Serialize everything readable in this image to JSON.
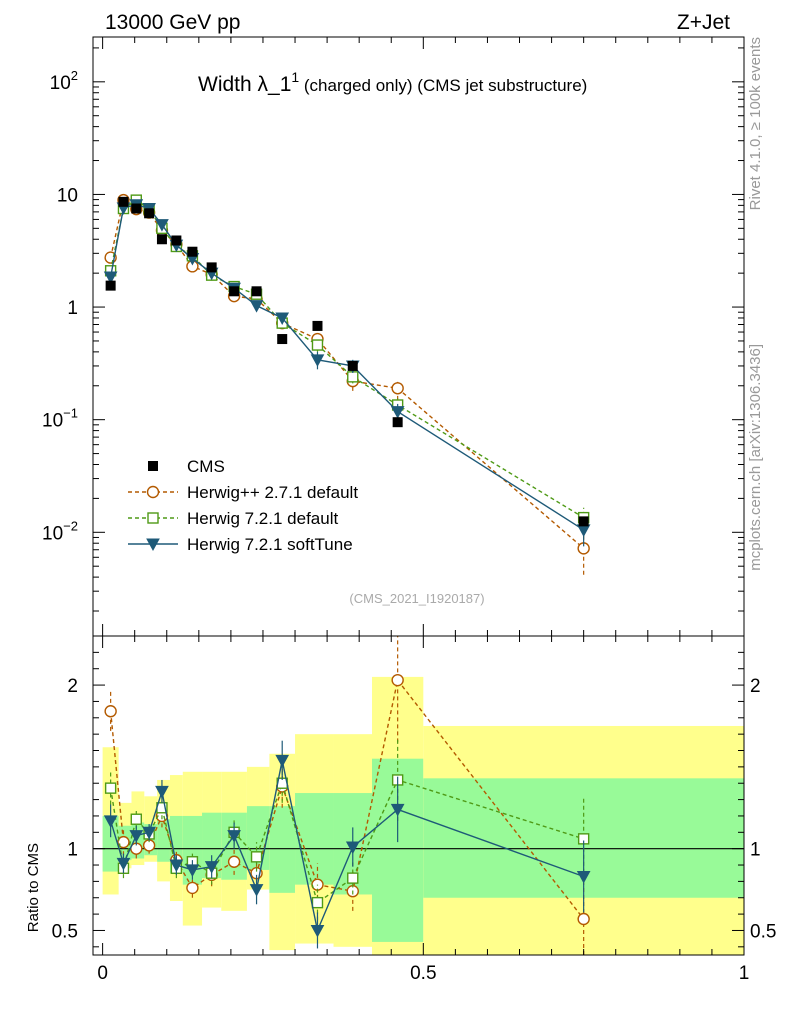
{
  "header": {
    "energy_label": "13000 GeV pp",
    "process_label": "Z+Jet",
    "side_label_top": "Rivet 4.1.0, ≥ 100k events",
    "side_label_bottom": "mcplots.cern.ch [arXiv:1306.3436]"
  },
  "chart_data": [
    {
      "type": "line",
      "panel": "main",
      "title": "Width λ_1",
      "title_superscript": "1",
      "title_suffix": " (charged only) (CMS jet substructure)",
      "analysis_tag": "(CMS_2021_I1920187)",
      "yscale": "log",
      "xlim": [
        -0.015,
        1.0
      ],
      "ylim": [
        0.0012,
        250
      ],
      "ytick_values": [
        0.01,
        0.1,
        1,
        10,
        100
      ],
      "ytick_labels": [
        {
          "base": "10",
          "exp": "−2"
        },
        {
          "base": "10",
          "exp": "−1"
        },
        {
          "base": "1",
          "exp": ""
        },
        {
          "base": "10",
          "exp": ""
        },
        {
          "base": "10",
          "exp": "2"
        }
      ],
      "data_points": {
        "name": "CMS",
        "x": [
          0.0125,
          0.0325,
          0.0525,
          0.0725,
          0.0925,
          0.115,
          0.14,
          0.17,
          0.205,
          0.24,
          0.28,
          0.335,
          0.39,
          0.46,
          0.75
        ],
        "y": [
          1.55,
          8.6,
          7.5,
          6.8,
          4.0,
          3.9,
          3.1,
          2.25,
          1.38,
          1.38,
          0.52,
          0.68,
          0.3,
          0.095,
          0.0125
        ]
      },
      "series": [
        {
          "name": "Herwig++ 2.7.1 default",
          "color": "#b35a00",
          "marker": "circle",
          "dash": "4,3",
          "y": [
            2.75,
            8.9,
            7.4,
            6.9,
            4.8,
            3.6,
            2.3,
            1.95,
            1.25,
            1.18,
            0.72,
            0.52,
            0.22,
            0.19,
            0.0072
          ],
          "err": [
            0.3,
            0.5,
            0.4,
            0.3,
            0.3,
            0.2,
            0.15,
            0.15,
            0.1,
            0.1,
            0.07,
            0.07,
            0.04,
            0.04,
            0.003
          ]
        },
        {
          "name": "Herwig 7.2.1 default",
          "color": "#4f9a16",
          "marker": "square",
          "dash": "4,3",
          "y": [
            2.1,
            7.5,
            8.9,
            7.4,
            5.0,
            3.45,
            2.85,
            1.92,
            1.52,
            1.3,
            0.72,
            0.46,
            0.24,
            0.135,
            0.0135
          ],
          "err": [
            0.2,
            0.4,
            0.4,
            0.3,
            0.3,
            0.2,
            0.15,
            0.15,
            0.1,
            0.1,
            0.06,
            0.06,
            0.03,
            0.02,
            0.003
          ]
        },
        {
          "name": "Herwig 7.2.1 softTune",
          "color": "#1e5a78",
          "marker": "triangle-down",
          "dash": "",
          "y": [
            1.85,
            7.6,
            8.1,
            7.5,
            5.4,
            3.55,
            2.7,
            2.0,
            1.47,
            1.03,
            0.8,
            0.34,
            0.3,
            0.118,
            0.0105
          ],
          "err": [
            0.2,
            0.4,
            0.4,
            0.3,
            0.3,
            0.2,
            0.15,
            0.15,
            0.1,
            0.1,
            0.06,
            0.06,
            0.04,
            0.02,
            0.003
          ]
        }
      ],
      "legend": {
        "position": "lower-left",
        "entries": [
          "CMS",
          "Herwig++ 2.7.1 default",
          "Herwig 7.2.1 default",
          "Herwig 7.2.1 softTune"
        ]
      }
    },
    {
      "type": "line",
      "panel": "ratio",
      "ylabel": "Ratio to CMS",
      "xlim": [
        -0.015,
        1.0
      ],
      "ylim": [
        0.35,
        2.3
      ],
      "ytick_values": [
        0.5,
        1,
        2
      ],
      "ytick_labels": [
        "0.5",
        "1",
        "2"
      ],
      "xtick_values": [
        0,
        0.5,
        1
      ],
      "xtick_labels": [
        "0",
        "0.5",
        "1"
      ],
      "reference_line": 1,
      "bands": {
        "bin_edges": [
          0,
          0.025,
          0.045,
          0.065,
          0.085,
          0.105,
          0.125,
          0.155,
          0.185,
          0.225,
          0.26,
          0.3,
          0.36,
          0.42,
          0.5,
          1.0
        ],
        "outer_low": [
          0.72,
          0.88,
          0.9,
          0.92,
          0.8,
          0.68,
          0.53,
          0.64,
          0.62,
          0.75,
          0.38,
          0.42,
          0.4,
          0.3,
          0.3
        ],
        "outer_high": [
          1.62,
          1.28,
          1.35,
          1.32,
          1.42,
          1.45,
          1.47,
          1.47,
          1.47,
          1.5,
          1.58,
          1.7,
          1.7,
          2.05,
          1.75
        ],
        "inner_low": [
          0.86,
          0.93,
          0.94,
          0.96,
          0.92,
          0.85,
          0.78,
          0.82,
          0.81,
          0.87,
          0.73,
          0.78,
          0.72,
          0.43,
          0.7
        ],
        "inner_high": [
          1.2,
          1.14,
          1.16,
          1.15,
          1.18,
          1.2,
          1.2,
          1.22,
          1.22,
          1.26,
          1.26,
          1.34,
          1.34,
          1.55,
          1.43
        ]
      },
      "series": [
        {
          "name": "Herwig++ 2.7.1 default",
          "y": [
            1.84,
            1.04,
            1.0,
            1.02,
            1.2,
            0.93,
            0.76,
            0.84,
            0.92,
            0.85,
            1.38,
            0.78,
            0.74,
            2.03,
            0.57
          ],
          "err": [
            0.12,
            0.08,
            0.06,
            0.05,
            0.07,
            0.06,
            0.06,
            0.07,
            0.08,
            0.09,
            0.13,
            0.13,
            0.12,
            0.38,
            0.22
          ]
        },
        {
          "name": "Herwig 7.2.1 default",
          "y": [
            1.37,
            0.88,
            1.18,
            1.09,
            1.25,
            0.88,
            0.92,
            0.85,
            1.1,
            0.95,
            1.4,
            0.67,
            0.82,
            1.42,
            1.06
          ],
          "err": [
            0.1,
            0.06,
            0.06,
            0.05,
            0.07,
            0.06,
            0.06,
            0.07,
            0.08,
            0.09,
            0.12,
            0.11,
            0.1,
            0.25,
            0.25
          ]
        },
        {
          "name": "Herwig 7.2.1 softTune",
          "y": [
            1.17,
            0.91,
            1.08,
            1.1,
            1.35,
            0.9,
            0.87,
            0.89,
            1.08,
            0.75,
            1.54,
            0.5,
            1.01,
            1.24,
            0.83
          ],
          "err": [
            0.1,
            0.06,
            0.06,
            0.05,
            0.07,
            0.06,
            0.06,
            0.07,
            0.08,
            0.09,
            0.12,
            0.11,
            0.12,
            0.2,
            0.22
          ]
        }
      ]
    }
  ]
}
